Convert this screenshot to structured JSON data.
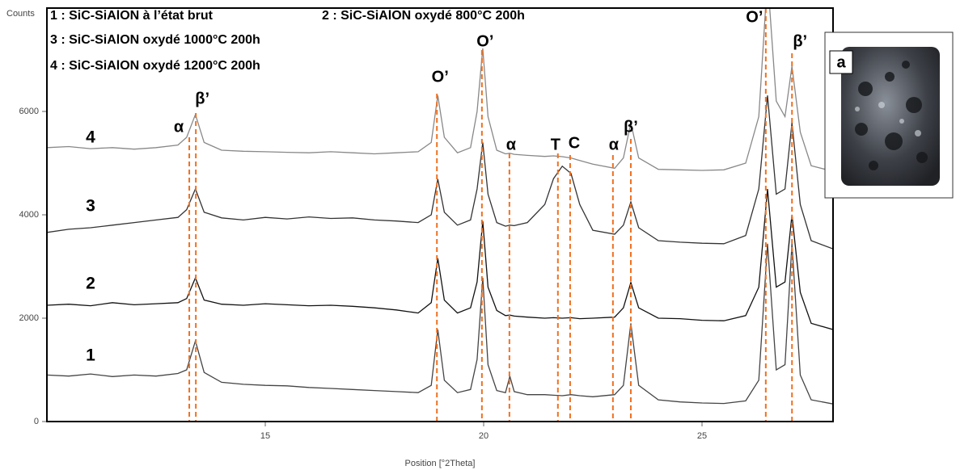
{
  "chart_data": {
    "type": "line",
    "y_axis_label": "Counts",
    "x_axis_label": "Position [°2Theta]",
    "xlim": [
      10,
      28
    ],
    "xticks": [
      15,
      20,
      25
    ],
    "ylim": [
      0,
      8000
    ],
    "yticks": [
      0,
      2000,
      4000,
      6000
    ],
    "legend": [
      "1 : SiC-SiAlON à l’état brut",
      "2 : SiC-SiAlON oxydé 800°C 200h",
      "3 : SiC-SiAlON oxydé 1000°C 200h",
      "4 : SiC-SiAlON oxydé 1200°C 200h"
    ],
    "x": [
      10,
      10.5,
      11,
      11.5,
      12,
      12.5,
      13,
      13.2,
      13.4,
      13.6,
      14,
      14.5,
      15,
      15.5,
      16,
      16.5,
      17,
      17.5,
      18,
      18.5,
      18.8,
      18.95,
      19.1,
      19.4,
      19.7,
      19.85,
      19.98,
      20.1,
      20.3,
      20.5,
      20.6,
      20.7,
      21,
      21.4,
      21.6,
      21.8,
      22,
      22.2,
      22.5,
      23,
      23.2,
      23.37,
      23.55,
      24,
      24.5,
      25,
      25.5,
      26,
      26.3,
      26.5,
      26.7,
      26.9,
      27.06,
      27.25,
      27.5,
      28
    ],
    "series": [
      {
        "name": "1",
        "color": "#444444",
        "values": [
          900,
          880,
          920,
          870,
          900,
          880,
          930,
          1000,
          1560,
          950,
          760,
          720,
          700,
          690,
          660,
          640,
          620,
          600,
          580,
          560,
          700,
          1780,
          800,
          560,
          620,
          1200,
          2780,
          1100,
          600,
          560,
          875,
          580,
          520,
          520,
          510,
          500,
          520,
          500,
          480,
          520,
          700,
          1900,
          700,
          420,
          380,
          360,
          350,
          400,
          800,
          3440,
          1000,
          1100,
          3440,
          900,
          420,
          340
        ]
      },
      {
        "name": "2",
        "color": "#111111",
        "values": [
          2250,
          2270,
          2240,
          2300,
          2260,
          2280,
          2300,
          2380,
          2780,
          2350,
          2270,
          2250,
          2280,
          2260,
          2240,
          2250,
          2230,
          2200,
          2160,
          2100,
          2300,
          3160,
          2350,
          2100,
          2200,
          2700,
          3875,
          2600,
          2150,
          2050,
          2060,
          2040,
          2020,
          2000,
          2010,
          2000,
          2010,
          1990,
          2000,
          2020,
          2200,
          2690,
          2200,
          2000,
          1990,
          1960,
          1950,
          2050,
          2600,
          4500,
          2600,
          2700,
          4000,
          2500,
          1900,
          1780
        ]
      },
      {
        "name": "3",
        "color": "#333333",
        "values": [
          3660,
          3720,
          3750,
          3800,
          3850,
          3900,
          3950,
          4100,
          4500,
          4050,
          3940,
          3900,
          3950,
          3920,
          3960,
          3930,
          3940,
          3900,
          3880,
          3850,
          4000,
          4690,
          4050,
          3800,
          3900,
          4500,
          5400,
          4400,
          3850,
          3780,
          3800,
          3790,
          3850,
          4200,
          4700,
          4940,
          4800,
          4200,
          3700,
          3625,
          3800,
          4250,
          3750,
          3500,
          3470,
          3450,
          3440,
          3600,
          4500,
          6310,
          4400,
          4500,
          5780,
          4200,
          3500,
          3340
        ]
      },
      {
        "name": "4",
        "color": "#888888",
        "values": [
          5300,
          5320,
          5280,
          5300,
          5270,
          5300,
          5350,
          5500,
          5940,
          5400,
          5250,
          5230,
          5220,
          5210,
          5200,
          5220,
          5200,
          5180,
          5200,
          5220,
          5400,
          6310,
          5500,
          5200,
          5300,
          6000,
          7220,
          5900,
          5250,
          5180,
          5190,
          5170,
          5150,
          5130,
          5140,
          5125,
          5100,
          5050,
          4980,
          4900,
          5100,
          5780,
          5100,
          4880,
          4870,
          4860,
          4870,
          5000,
          5900,
          8600,
          6200,
          5900,
          6875,
          5600,
          4950,
          4840
        ]
      }
    ],
    "phase_lines": [
      {
        "label": "α",
        "x": 13.26
      },
      {
        "label": "β’",
        "x": 13.41
      },
      {
        "label": "O’",
        "x": 18.93
      },
      {
        "label": "O’",
        "x": 19.96
      },
      {
        "label": "α",
        "x": 20.59
      },
      {
        "label": "T",
        "x": 21.7
      },
      {
        "label": "C",
        "x": 21.98
      },
      {
        "label": "α",
        "x": 22.96
      },
      {
        "label": "β’",
        "x": 23.37
      },
      {
        "label": "O’",
        "x": 26.46
      },
      {
        "label": "β’",
        "x": 27.06
      }
    ],
    "phase_line_color": "#f07020",
    "inset_label": "a"
  }
}
